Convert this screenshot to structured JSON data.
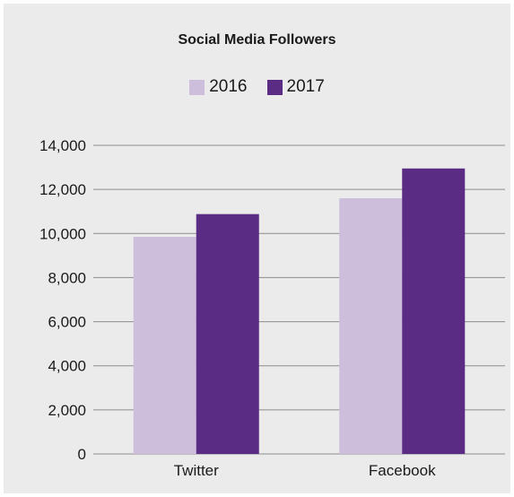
{
  "chart_data": {
    "type": "bar",
    "title": "Social Media Followers",
    "categories": [
      "Twitter",
      "Facebook"
    ],
    "series": [
      {
        "name": "2016",
        "values": [
          9850,
          11600
        ],
        "color": "#cdbfdb"
      },
      {
        "name": "2017",
        "values": [
          10880,
          12950
        ],
        "color": "#5b2c83"
      }
    ],
    "ylim": [
      0,
      14000
    ],
    "yticks": [
      0,
      2000,
      4000,
      6000,
      8000,
      10000,
      12000,
      14000
    ],
    "ytick_labels": [
      "0",
      "2,000",
      "4,000",
      "6,000",
      "8,000",
      "10,000",
      "12,000",
      "14,000"
    ],
    "xlabel": "",
    "ylabel": "",
    "grid": "horizontal",
    "legend_position": "top-center",
    "background_color": "#ebebeb"
  }
}
